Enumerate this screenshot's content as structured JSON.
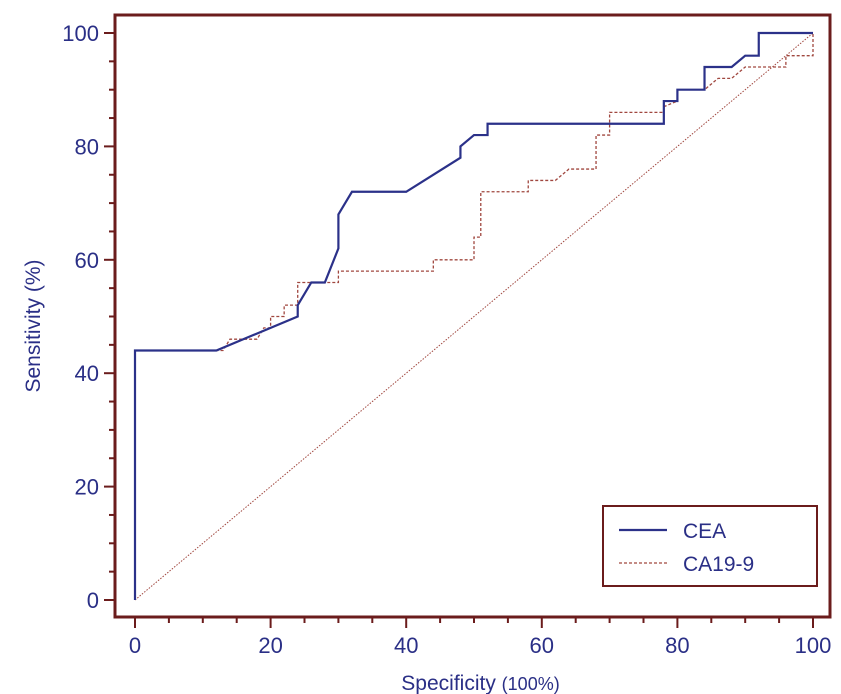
{
  "chart_data": {
    "type": "line",
    "xlabel": "Specificity",
    "xlabel_unit": "(100%)",
    "ylabel": "Sensitivity (%)",
    "xlim": [
      0,
      100
    ],
    "ylim": [
      0,
      100
    ],
    "x_ticks": [
      0,
      20,
      40,
      60,
      80,
      100
    ],
    "y_ticks": [
      0,
      20,
      40,
      60,
      80,
      100
    ],
    "x_tick_labels": [
      "0",
      "20",
      "40",
      "60",
      "80",
      "100"
    ],
    "y_tick_labels": [
      "0",
      "20",
      "40",
      "60",
      "80",
      "100"
    ],
    "grid": false,
    "legend_position": "bottom-right",
    "series": [
      {
        "name": "CEA",
        "style": "solid",
        "color": "#2b3189",
        "points": [
          [
            0,
            0
          ],
          [
            0,
            44
          ],
          [
            12,
            44
          ],
          [
            12,
            44
          ],
          [
            24,
            50
          ],
          [
            24,
            52
          ],
          [
            26,
            56
          ],
          [
            28,
            56
          ],
          [
            30,
            62
          ],
          [
            30,
            68
          ],
          [
            31,
            70
          ],
          [
            32,
            72
          ],
          [
            40,
            72
          ],
          [
            48,
            78
          ],
          [
            48,
            80
          ],
          [
            50,
            82
          ],
          [
            52,
            82
          ],
          [
            52,
            84
          ],
          [
            78,
            84
          ],
          [
            78,
            88
          ],
          [
            80,
            88
          ],
          [
            80,
            90
          ],
          [
            84,
            90
          ],
          [
            84,
            94
          ],
          [
            88,
            94
          ],
          [
            90,
            96
          ],
          [
            92,
            96
          ],
          [
            92,
            100
          ],
          [
            100,
            100
          ]
        ]
      },
      {
        "name": "CA19-9",
        "style": "dashed",
        "color": "#a0473f",
        "points": [
          [
            0,
            0
          ],
          [
            0,
            44
          ],
          [
            13,
            44
          ],
          [
            14,
            46
          ],
          [
            18,
            46
          ],
          [
            19,
            48
          ],
          [
            20,
            48
          ],
          [
            20,
            50
          ],
          [
            22,
            50
          ],
          [
            22,
            52
          ],
          [
            24,
            52
          ],
          [
            24,
            56
          ],
          [
            30,
            56
          ],
          [
            30,
            58
          ],
          [
            44,
            58
          ],
          [
            44,
            60
          ],
          [
            50,
            60
          ],
          [
            50,
            64
          ],
          [
            51,
            64
          ],
          [
            51,
            72
          ],
          [
            58,
            72
          ],
          [
            58,
            74
          ],
          [
            62,
            74
          ],
          [
            64,
            76
          ],
          [
            68,
            76
          ],
          [
            68,
            82
          ],
          [
            70,
            82
          ],
          [
            70,
            86
          ],
          [
            78,
            86
          ],
          [
            78,
            87
          ],
          [
            80,
            88
          ],
          [
            80,
            90
          ],
          [
            84,
            90
          ],
          [
            86,
            92
          ],
          [
            88,
            92
          ],
          [
            90,
            94
          ],
          [
            96,
            94
          ],
          [
            96,
            96
          ],
          [
            100,
            96
          ],
          [
            100,
            100
          ]
        ]
      },
      {
        "name": "",
        "style": "dotted",
        "color": "#a0473f",
        "points": [
          [
            0,
            0
          ],
          [
            100,
            100
          ]
        ]
      }
    ]
  },
  "colors": {
    "frame": "#6b1c1c",
    "text": "#2a2f86",
    "cea": "#2b3189",
    "ca199": "#a0473f"
  }
}
